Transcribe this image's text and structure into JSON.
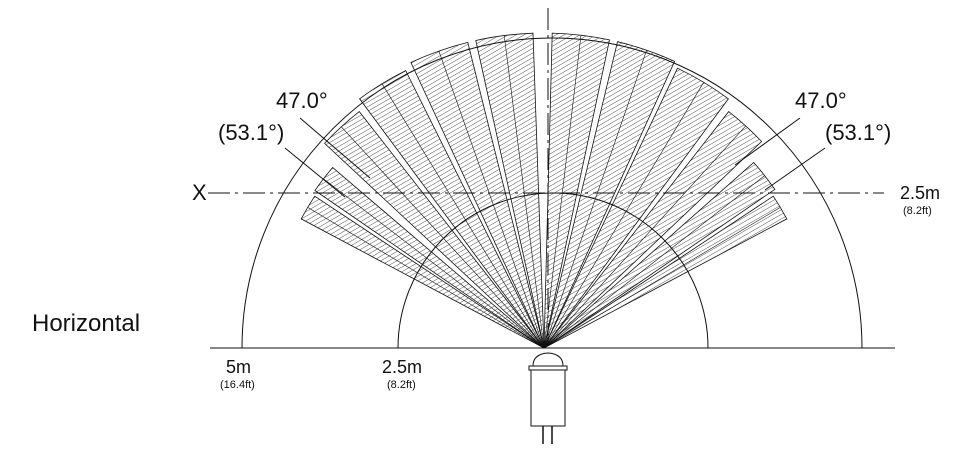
{
  "diagram": {
    "view_label": "Horizontal",
    "angle_labels": {
      "left_primary": "47.0°",
      "left_secondary": "(53.1°)",
      "right_primary": "47.0°",
      "right_secondary": "(53.1°)"
    },
    "axis": {
      "name": "X",
      "end_value": "2.5m",
      "end_value_imperial": "(8.2ft)"
    },
    "distance_labels": [
      {
        "value": "5m",
        "imperial": "(16.4ft)"
      },
      {
        "value": "2.5m",
        "imperial": "(8.2ft)"
      }
    ],
    "beam_count_per_side": 7,
    "colors": {
      "line": "#111111",
      "hatch": "#555555",
      "background": "#ffffff"
    }
  }
}
